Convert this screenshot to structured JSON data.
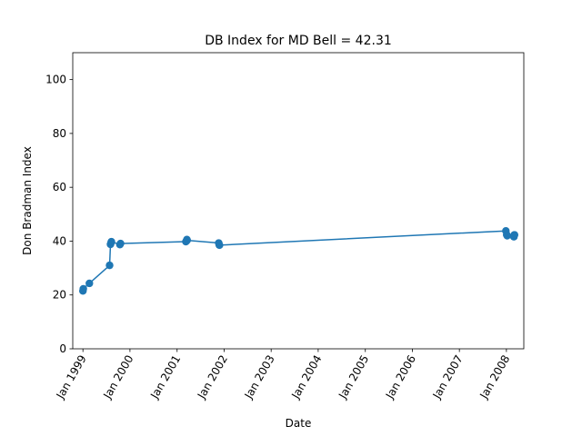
{
  "chart_data": {
    "type": "line",
    "title": "DB Index for MD Bell = 42.31",
    "xlabel": "Date",
    "ylabel": "Don Bradman Index",
    "ylim": [
      0,
      110
    ],
    "xlim": [
      "1998-10-14",
      "2008-05-15"
    ],
    "yticks": [
      0,
      20,
      40,
      60,
      80,
      100
    ],
    "xticks": [
      {
        "date": "1999-01-01",
        "label": "Jan 1999"
      },
      {
        "date": "2000-01-01",
        "label": "Jan 2000"
      },
      {
        "date": "2001-01-01",
        "label": "Jan 2001"
      },
      {
        "date": "2002-01-01",
        "label": "Jan 2002"
      },
      {
        "date": "2003-01-01",
        "label": "Jan 2003"
      },
      {
        "date": "2004-01-01",
        "label": "Jan 2004"
      },
      {
        "date": "2005-01-01",
        "label": "Jan 2005"
      },
      {
        "date": "2006-01-01",
        "label": "Jan 2006"
      },
      {
        "date": "2007-01-01",
        "label": "Jan 2007"
      },
      {
        "date": "2008-01-01",
        "label": "Jan 2008"
      }
    ],
    "grid": false,
    "color": "#1f77b4",
    "series": [
      {
        "x": [
          "1999-01-01",
          "1999-01-04",
          "1999-02-20",
          "1999-07-27",
          "1999-08-03",
          "1999-08-08",
          "1999-08-10",
          "1999-10-15",
          "1999-10-20",
          "2001-03-10",
          "2001-03-15",
          "2001-03-18",
          "2001-03-20",
          "2001-11-20",
          "2001-11-24",
          "2001-11-26",
          "2007-12-28",
          "2008-01-03",
          "2008-01-07",
          "2008-02-28",
          "2008-03-02",
          "2008-03-04"
        ],
        "y": [
          21.5,
          22.3,
          24.3,
          31.0,
          38.8,
          39.5,
          39.8,
          38.7,
          39.1,
          39.8,
          40.1,
          40.6,
          40.3,
          39.3,
          38.6,
          38.5,
          43.8,
          42.4,
          42.0,
          41.6,
          42.3,
          42.31
        ]
      }
    ]
  }
}
